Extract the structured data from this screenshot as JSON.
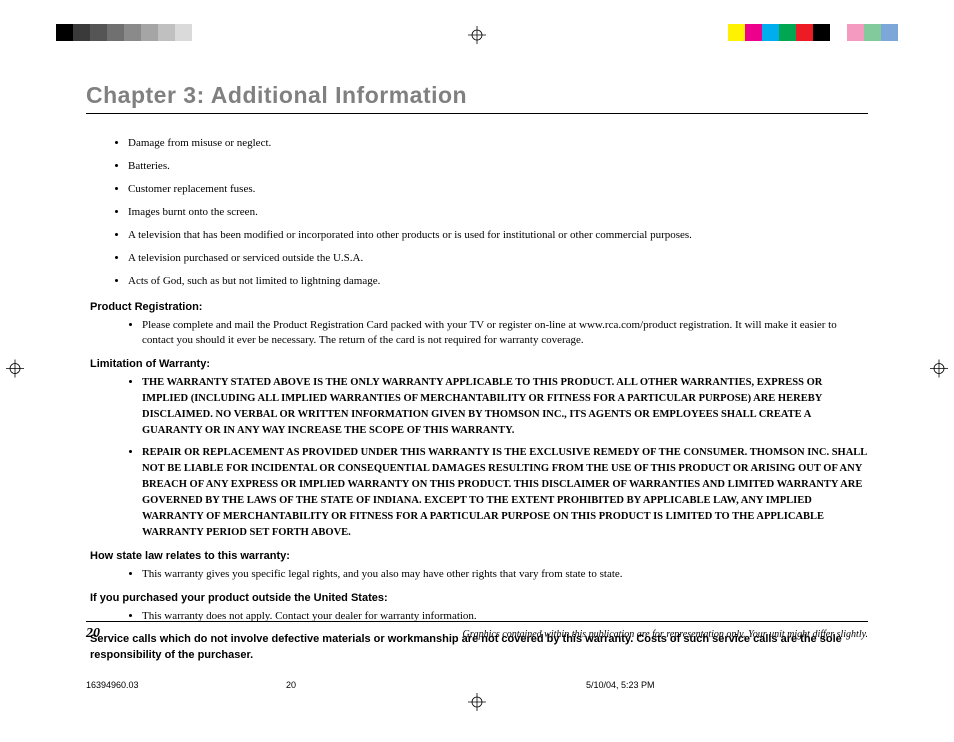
{
  "colorbar_left": [
    "#000000",
    "#3a3a3a",
    "#555555",
    "#707070",
    "#8a8a8a",
    "#a5a5a5",
    "#c0c0c0",
    "#dadada",
    "#ffffff"
  ],
  "colorbar_right": [
    "#fff200",
    "#ec008c",
    "#00aeef",
    "#00a651",
    "#ed1c24",
    "#000000",
    "#ffffff",
    "#f49ac1",
    "#82ca9c",
    "#7da7d9"
  ],
  "chapter_title": "Chapter 3: Additional Information",
  "bullets": [
    "Damage from misuse or neglect.",
    "Batteries.",
    "Customer replacement fuses.",
    "Images burnt onto the screen.",
    "A television that has been modified or incorporated into other products or is used for institutional or other commercial purposes.",
    "A television purchased or serviced outside the U.S.A.",
    "Acts of God, such as but not limited to lightning damage."
  ],
  "sections": {
    "registration": {
      "head": "Product Registration:",
      "item": "Please complete and mail the Product Registration Card packed with your TV or register on-line at www.rca.com/product registration. It will make it easier to contact you should it ever be necessary. The return of the card is not required for warranty coverage."
    },
    "limitation": {
      "head": "Limitation of Warranty:",
      "item1": "THE WARRANTY STATED ABOVE IS THE ONLY WARRANTY APPLICABLE TO THIS PRODUCT.  ALL OTHER WARRANTIES, EXPRESS OR IMPLIED (INCLUDING ALL IMPLIED WARRANTIES OF MERCHANTABILITY OR FITNESS FOR A PARTICULAR PURPOSE) ARE HEREBY DISCLAIMED.  NO VERBAL OR WRITTEN INFORMATION GIVEN BY THOMSON INC., ITS AGENTS OR EMPLOYEES SHALL CREATE A GUARANTY OR IN ANY WAY INCREASE THE SCOPE OF THIS WARRANTY.",
      "item2": "REPAIR OR REPLACEMENT AS PROVIDED UNDER THIS WARRANTY IS THE EXCLUSIVE REMEDY OF THE CONSUMER.  THOMSON INC. SHALL NOT BE LIABLE FOR INCIDENTAL OR CONSEQUENTIAL DAMAGES RESULTING FROM THE USE OF THIS PRODUCT OR ARISING OUT OF ANY BREACH OF ANY EXPRESS OR IMPLIED WARRANTY ON THIS PRODUCT.  THIS DISCLAIMER OF WARRANTIES AND LIMITED WARRANTY ARE GOVERNED BY THE LAWS OF THE STATE OF INDIANA.  EXCEPT TO THE EXTENT PROHIBITED BY APPLICABLE LAW, ANY IMPLIED WARRANTY OF MERCHANTABILITY OR FITNESS FOR A PARTICULAR PURPOSE ON THIS PRODUCT IS LIMITED TO THE APPLICABLE WARRANTY PERIOD SET FORTH ABOVE."
    },
    "statelaw": {
      "head": "How state law relates to this warranty:",
      "item": "This warranty gives you specific legal rights, and you also may have other rights that vary from state to state."
    },
    "outside_us": {
      "head": "If you purchased your product outside the United States:",
      "item": "This warranty does not apply. Contact your dealer for warranty information."
    }
  },
  "final_note": "Service calls which do not involve defective materials or workmanship are not covered by this warranty. Costs of such service calls are the sole responsibility of the purchaser.",
  "footer": {
    "page_num": "20",
    "note": "Graphics contained within this publication are for representation only. Your unit might differ slightly."
  },
  "slug": {
    "file": "16394960.03",
    "page": "20",
    "date": "5/10/04, 5:23 PM"
  }
}
